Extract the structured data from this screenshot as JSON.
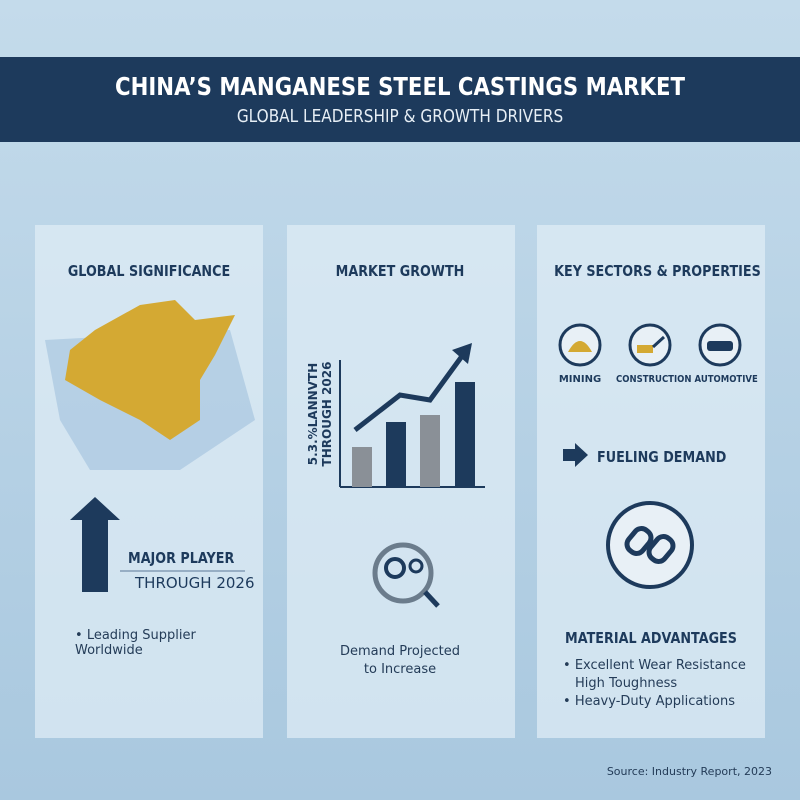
{
  "header": {
    "title": "CHINA’S MANGANESE STEEL CASTINGS MARKET",
    "subtitle": "GLOBAL LEADERSHIP & GROWTH DRIVERS"
  },
  "panels": [
    {
      "heading": "GLOBAL SIGNIFICANCE",
      "callout": "MAJOR PLAYER",
      "callout_sub": "THROUGH 2026",
      "bullets": [
        "Leading Supplier Worldwide"
      ]
    },
    {
      "heading": "MARKET GROWTH",
      "axis_label": [
        "5.3.%LANNVTH",
        "THROUGH 2026"
      ],
      "note": [
        "Demand Projected",
        "to Increase"
      ]
    },
    {
      "heading": "KEY SECTORS & PROPERTIES",
      "sectors": [
        "MINING",
        "CONSTRUCTION",
        "AUTOMOTIVE"
      ],
      "driver": "FUELING DEMAND",
      "subheading": "MATERIAL ADVANTAGES",
      "bullets": [
        "Excellent Wear Resistance",
        "High Toughness",
        "Heavy-Duty Applications"
      ]
    }
  ],
  "source": "Source: Industry Report, 2023"
}
